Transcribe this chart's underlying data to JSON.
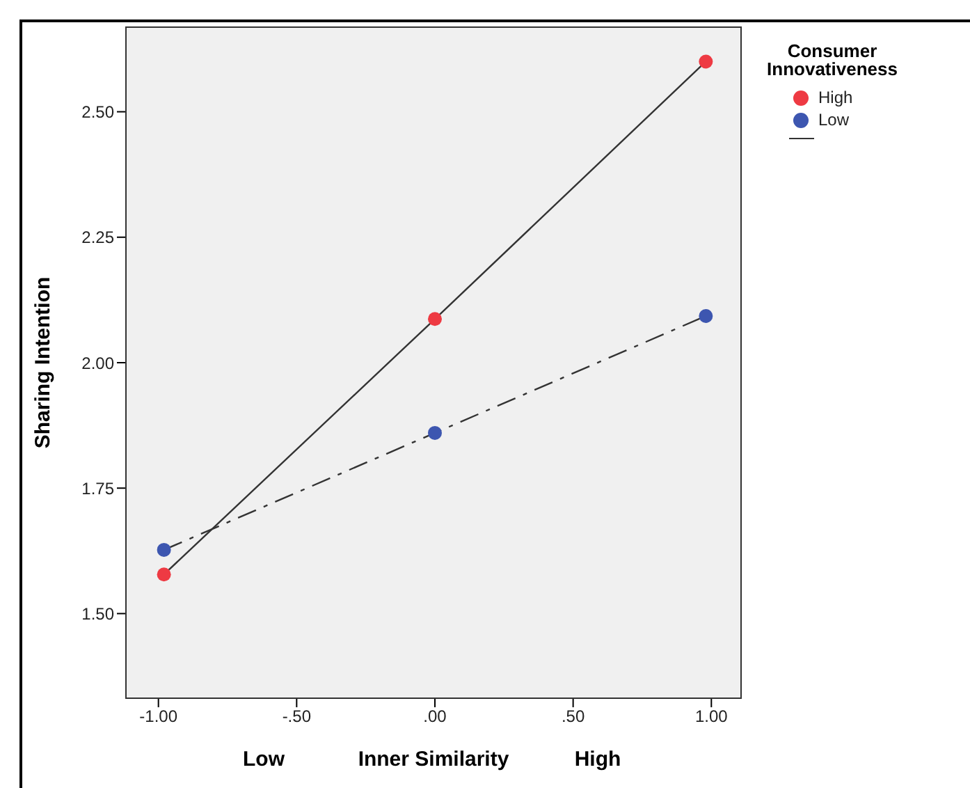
{
  "chart_data": {
    "type": "scatter",
    "xlabel": "Inner Similarity",
    "ylabel": "Sharing Intention",
    "legend_title": "Consumer Innovativeness",
    "annotations": [
      "Low",
      "High"
    ],
    "x": [
      -0.98,
      0,
      0.98
    ],
    "series": [
      {
        "name": "High",
        "color": "#ee3a43",
        "values": [
          1.578,
          2.087,
          2.6
        ]
      },
      {
        "name": "Low",
        "color": "#3d56b0",
        "values": [
          1.627,
          1.86,
          2.093
        ]
      },
      {
        "type": "line",
        "color": "#333333",
        "values": [
          1.578,
          2.087,
          2.6
        ],
        "line_style": "solid",
        "marker": "none"
      },
      {
        "type": "line",
        "color": "#333333",
        "values": [
          1.627,
          1.86,
          2.093
        ],
        "line_style": "dashed",
        "marker": "none"
      }
    ],
    "xlim": [
      -1.12,
      1.11
    ],
    "xticks": [
      {
        "value": -1,
        "label": "-1.00"
      },
      {
        "value": -0.5,
        "label": "-.50"
      },
      {
        "value": 0,
        "label": ".00"
      },
      {
        "value": 0.5,
        "label": ".50"
      },
      {
        "value": 1,
        "label": "1.00"
      }
    ],
    "ylim": [
      1.33,
      2.67
    ],
    "yticks": [
      {
        "value": 1.5,
        "label": "1.50"
      },
      {
        "value": 1.75,
        "label": "1.75"
      },
      {
        "value": 2,
        "label": "2.00"
      },
      {
        "value": 2.25,
        "label": "2.25"
      },
      {
        "value": 2.5,
        "label": "2.50"
      }
    ],
    "grid": false,
    "legend": "top right",
    "marker": "circle"
  }
}
